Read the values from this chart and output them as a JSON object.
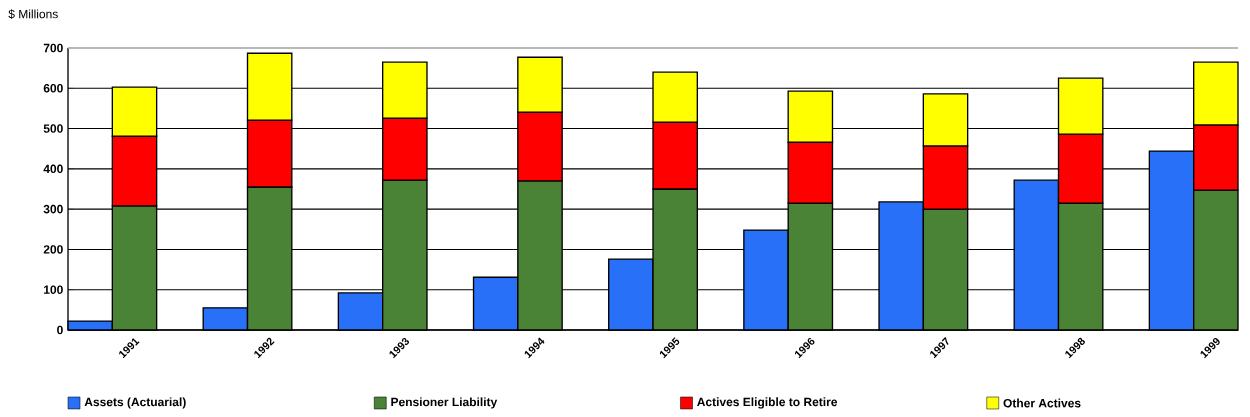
{
  "chart_data": {
    "type": "bar",
    "ylabel": "$ Millions",
    "categories": [
      null,
      "1991",
      null,
      "1992",
      null,
      "1993",
      null,
      "1994",
      null,
      "1995",
      null,
      "1996",
      null,
      "1997",
      null,
      "1998",
      null,
      "1999"
    ],
    "stacked": true,
    "series": [
      {
        "name": "Assets (Actuarial)",
        "color": "#2970f8",
        "values": [
          22,
          null,
          55,
          null,
          92,
          null,
          131,
          null,
          176,
          null,
          248,
          null,
          318,
          null,
          372,
          null,
          444,
          null
        ]
      },
      {
        "name": "Pensioner Liability",
        "color": "#4a8336",
        "values": [
          null,
          308,
          null,
          355,
          null,
          372,
          null,
          370,
          null,
          350,
          null,
          315,
          null,
          300,
          null,
          315,
          null,
          347
        ]
      },
      {
        "name": "Actives Eligible to Retire",
        "color": "#ff0000",
        "values": [
          null,
          173,
          null,
          166,
          null,
          154,
          null,
          171,
          null,
          166,
          null,
          151,
          null,
          157,
          null,
          171,
          null,
          162
        ]
      },
      {
        "name": "Other Actives",
        "color": "#ffff00",
        "values": [
          null,
          122,
          null,
          166,
          null,
          139,
          null,
          136,
          null,
          124,
          null,
          127,
          null,
          129,
          null,
          139,
          null,
          156
        ]
      }
    ],
    "ylim": [
      0,
      700
    ],
    "yticks": [
      0,
      100,
      200,
      300,
      400,
      500,
      600,
      700
    ],
    "grid": "y",
    "legend": "bottom"
  }
}
